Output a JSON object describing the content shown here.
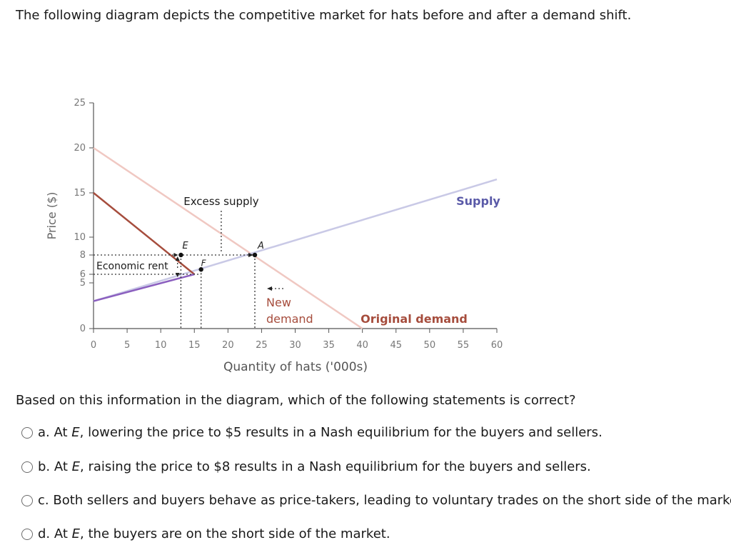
{
  "intro": "The following diagram depicts the competitive market for hats before and after a demand shift.",
  "question": "Based on this information in the diagram, which of the following statements is correct?",
  "options": [
    {
      "letter": "a.",
      "parts": [
        "At ",
        "E",
        ", lowering the price to $5 results in a Nash equilibrium for the buyers and sellers."
      ]
    },
    {
      "letter": "b.",
      "parts": [
        "At ",
        "E",
        ", raising the price to $8 results in a Nash equilibrium for the buyers and sellers."
      ]
    },
    {
      "letter": "c.",
      "parts": [
        "Both sellers and buyers behave as price-takers, leading to voluntary trades on the short side of the market.",
        "",
        ""
      ]
    },
    {
      "letter": "d.",
      "parts": [
        "At ",
        "E",
        ", the buyers are on the short side of the market."
      ]
    }
  ],
  "chart_data": {
    "type": "line",
    "xlabel": "Quantity of hats ('000s)",
    "ylabel": "Price ($)",
    "xlim": [
      0,
      60
    ],
    "ylim": [
      0,
      25
    ],
    "x_ticks": [
      0,
      5,
      10,
      15,
      20,
      25,
      30,
      35,
      40,
      45,
      50,
      55,
      60
    ],
    "y_ticks": [
      0,
      5,
      6,
      8,
      10,
      15,
      20,
      25
    ],
    "series": [
      {
        "name": "Supply",
        "color": "#c9c9e6",
        "points": [
          [
            0,
            3
          ],
          [
            60,
            16.5
          ]
        ]
      },
      {
        "name": "Original demand",
        "color": "#f0c8c2",
        "points": [
          [
            0,
            20
          ],
          [
            40,
            0
          ]
        ]
      },
      {
        "name": "New demand",
        "color": "#a64d3d",
        "points": [
          [
            0,
            15
          ],
          [
            15,
            6
          ]
        ]
      },
      {
        "name": "",
        "color": "#8b5fbf",
        "points": [
          [
            0,
            3
          ],
          [
            15,
            6
          ]
        ]
      }
    ],
    "points": [
      {
        "label": "E",
        "x": 13,
        "y": 8
      },
      {
        "label": "F",
        "x": 16,
        "y": 6.5
      },
      {
        "label": "A",
        "x": 24,
        "y": 8
      }
    ],
    "annotations": [
      {
        "text": "Excess supply",
        "color": "#1a1a1a"
      },
      {
        "text": "Economic rent",
        "color": "#1a1a1a"
      },
      {
        "text": "Supply",
        "color": "#5a5aa8"
      },
      {
        "text": "Original demand",
        "color": "#a64d3d"
      },
      {
        "text": "New",
        "color": "#a64d3d"
      },
      {
        "text": "demand",
        "color": "#a64d3d"
      }
    ]
  }
}
